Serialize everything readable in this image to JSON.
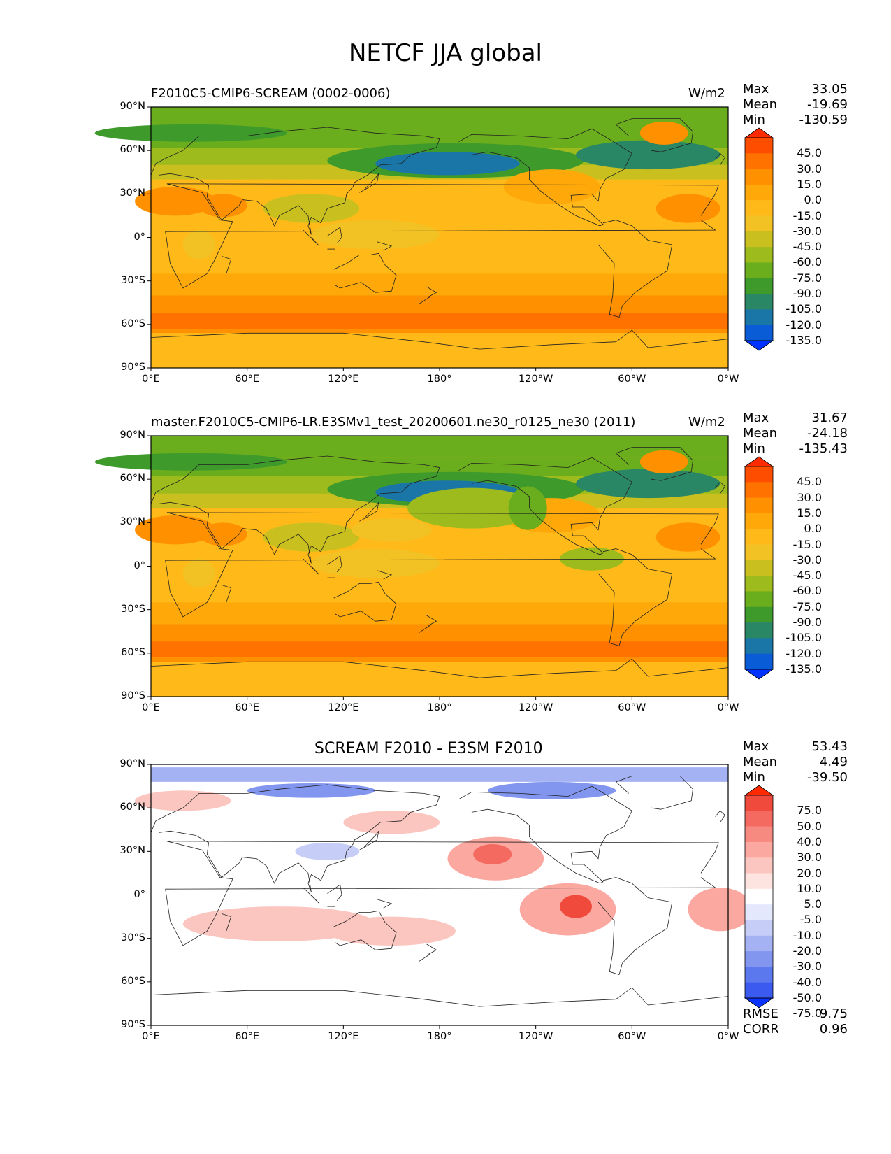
{
  "title": "NETCF JJA global",
  "chart_data": [
    {
      "type": "heatmap",
      "title": "F2010C5-CMIP6-SCREAM (0002-0006)",
      "units": "W/m2",
      "stats": [
        {
          "label": "Max",
          "value": "33.05"
        },
        {
          "label": "Mean",
          "value": "-19.69"
        },
        {
          "label": "Min",
          "value": "-130.59"
        }
      ],
      "x_ticks": [
        "0°E",
        "60°E",
        "120°E",
        "180°",
        "120°W",
        "60°W",
        "0°W"
      ],
      "y_ticks": [
        "90°N",
        "60°N",
        "30°N",
        "0°",
        "30°S",
        "60°S",
        "90°S"
      ],
      "colorbar_levels": [
        "45.0",
        "30.0",
        "15.0",
        "0.0",
        "-15.0",
        "-30.0",
        "-45.0",
        "-60.0",
        "-75.0",
        "-90.0",
        "-105.0",
        "-120.0",
        "-135.0"
      ],
      "colorbar_colors": [
        "#ff2a00",
        "#ff4d00",
        "#ff7200",
        "#ff9100",
        "#ffa80a",
        "#ffba1a",
        "#f2c224",
        "#c9c01f",
        "#9dbb1c",
        "#6aad1d",
        "#3f9a2c",
        "#2a8766",
        "#1b76a8",
        "#0a5bd6",
        "#0033ff"
      ]
    },
    {
      "type": "heatmap",
      "title": "master.F2010C5-CMIP6-LR.E3SMv1_test_20200601.ne30_r0125_ne30 (2011)",
      "units": "W/m2",
      "stats": [
        {
          "label": "Max",
          "value": "31.67"
        },
        {
          "label": "Mean",
          "value": "-24.18"
        },
        {
          "label": "Min",
          "value": "-135.43"
        }
      ],
      "x_ticks": [
        "0°E",
        "60°E",
        "120°E",
        "180°",
        "120°W",
        "60°W",
        "0°W"
      ],
      "y_ticks": [
        "90°N",
        "60°N",
        "30°N",
        "0°",
        "30°S",
        "60°S",
        "90°S"
      ],
      "colorbar_levels": [
        "45.0",
        "30.0",
        "15.0",
        "0.0",
        "-15.0",
        "-30.0",
        "-45.0",
        "-60.0",
        "-75.0",
        "-90.0",
        "-105.0",
        "-120.0",
        "-135.0"
      ],
      "colorbar_colors": [
        "#ff2a00",
        "#ff4d00",
        "#ff7200",
        "#ff9100",
        "#ffa80a",
        "#ffba1a",
        "#f2c224",
        "#c9c01f",
        "#9dbb1c",
        "#6aad1d",
        "#3f9a2c",
        "#2a8766",
        "#1b76a8",
        "#0a5bd6",
        "#0033ff"
      ]
    },
    {
      "type": "heatmap",
      "title": "SCREAM F2010 - E3SM F2010",
      "stats": [
        {
          "label": "Max",
          "value": "53.43"
        },
        {
          "label": "Mean",
          "value": "4.49"
        },
        {
          "label": "Min",
          "value": "-39.50"
        }
      ],
      "metrics": [
        {
          "label": "RMSE",
          "value": "9.75"
        },
        {
          "label": "CORR",
          "value": "0.96"
        }
      ],
      "x_ticks": [
        "0°E",
        "60°E",
        "120°E",
        "180°",
        "120°W",
        "60°W",
        "0°W"
      ],
      "y_ticks": [
        "90°N",
        "60°N",
        "30°N",
        "0°",
        "30°S",
        "60°S",
        "90°S"
      ],
      "colorbar_levels": [
        "75.0",
        "50.0",
        "40.0",
        "30.0",
        "20.0",
        "10.0",
        "5.0",
        "-5.0",
        "-10.0",
        "-20.0",
        "-30.0",
        "-40.0",
        "-50.0",
        "-75.0"
      ],
      "colorbar_colors": [
        "#ff2a00",
        "#f04a3c",
        "#f46a60",
        "#f78a80",
        "#faa8a0",
        "#fcc6c0",
        "#fde4e0",
        "#ffffff",
        "#e4e8fc",
        "#c6cef8",
        "#a4b2f4",
        "#8296f0",
        "#5c78ee",
        "#3a5af0",
        "#0a33ff"
      ]
    }
  ]
}
